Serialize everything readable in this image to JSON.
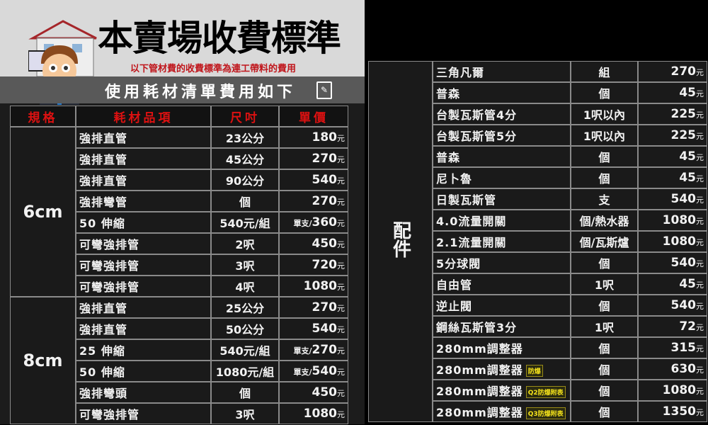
{
  "header": {
    "title": "本賣場收費標準",
    "subtitle": "以下管材費的收費標準為連工帶料的費用",
    "band": "使用耗材清單費用如下",
    "clipboard_icon": "clipboard-pen-icon"
  },
  "colors": {
    "title_red": "#c0151b",
    "header_bg": "#d9d9d9",
    "band_bg": "#595959",
    "badge": "#f4e21b"
  },
  "currency": "元",
  "left_table": {
    "headers": [
      "規格",
      "耗材品項",
      "尺吋",
      "單價"
    ],
    "groups": [
      {
        "category": "6cm",
        "rows": [
          {
            "item": "強排直管",
            "size": "23公分",
            "price": "180"
          },
          {
            "item": "強排直管",
            "size": "45公分",
            "price": "270"
          },
          {
            "item": "強排直管",
            "size": "90公分",
            "price": "540"
          },
          {
            "item": "強排彎管",
            "size": "個",
            "price": "270"
          },
          {
            "item": "50 伸縮",
            "size": "540元/組",
            "price_prefix": "單支/",
            "price": "360"
          },
          {
            "item": "可彎強排管",
            "size": "2呎",
            "price": "450"
          },
          {
            "item": "可彎強排管",
            "size": "3呎",
            "price": "720"
          },
          {
            "item": "可彎強排管",
            "size": "4呎",
            "price": "1080"
          }
        ]
      },
      {
        "category": "8cm",
        "rows": [
          {
            "item": "強排直管",
            "size": "25公分",
            "price": "270"
          },
          {
            "item": "強排直管",
            "size": "50公分",
            "price": "540"
          },
          {
            "item": "25 伸縮",
            "size": "540元/組",
            "price_prefix": "單支/",
            "price": "270"
          },
          {
            "item": "50 伸縮",
            "size": "1080元/組",
            "price_prefix": "單支/",
            "price": "540"
          },
          {
            "item": "強排彎頭",
            "size": "個",
            "price": "450"
          },
          {
            "item": "可彎強排管",
            "size": "3呎",
            "price": "1080"
          }
        ]
      }
    ]
  },
  "right_table": {
    "groups": [
      {
        "category": "配件",
        "rows": [
          {
            "item": "三角凡爾",
            "size": "組",
            "price": "270"
          },
          {
            "item": "普森",
            "size": "個",
            "price": "45"
          },
          {
            "item": "台製瓦斯管4分",
            "size": "1呎以內",
            "price": "225"
          },
          {
            "item": "台製瓦斯管5分",
            "size": "1呎以內",
            "price": "225"
          },
          {
            "item": "普森",
            "size": "個",
            "price": "45"
          },
          {
            "item": "尼卜魯",
            "size": "個",
            "price": "45"
          },
          {
            "item": "日製瓦斯管",
            "size": "支",
            "price": "540"
          },
          {
            "item": "4.0流量開關",
            "size": "個/熱水器",
            "price": "1080"
          },
          {
            "item": "2.1流量開關",
            "size": "個/瓦斯爐",
            "price": "1080"
          },
          {
            "item": "5分球閥",
            "size": "個",
            "price": "540"
          },
          {
            "item": "自由管",
            "size": "1呎",
            "price": "45"
          },
          {
            "item": "逆止閥",
            "size": "個",
            "price": "540"
          },
          {
            "item": "鋼絲瓦斯管3分",
            "size": "1呎",
            "price": "72"
          },
          {
            "item": "280mm調整器",
            "size": "個",
            "price": "315"
          },
          {
            "item": "280mm調整器",
            "badge": "防爆",
            "size": "個",
            "price": "630"
          },
          {
            "item": "280mm調整器",
            "badge": "Q2防爆附表",
            "size": "個",
            "price": "1080"
          },
          {
            "item": "280mm調整器",
            "badge": "Q3防爆附表",
            "size": "個",
            "price": "1350"
          }
        ]
      }
    ]
  }
}
